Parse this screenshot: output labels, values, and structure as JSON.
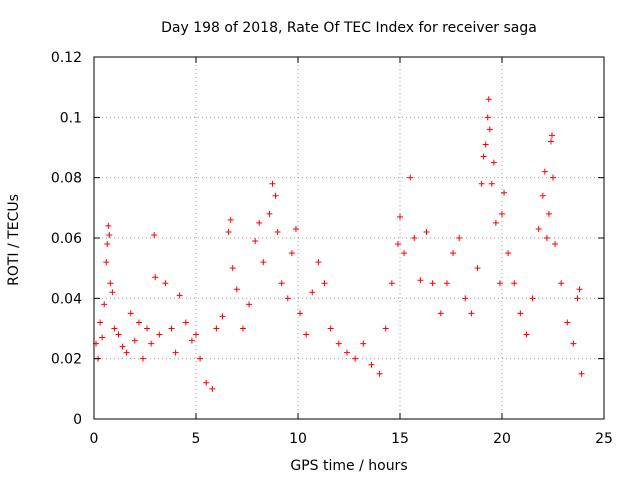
{
  "chart_data": {
    "type": "scatter",
    "title": "Day 198 of 2018, Rate Of TEC Index for receiver saga",
    "xlabel": "GPS time / hours",
    "ylabel": "ROTI / TECUs",
    "xlim": [
      0,
      25
    ],
    "ylim": [
      0,
      0.12
    ],
    "x_ticks": [
      0,
      5,
      10,
      15,
      20,
      25
    ],
    "x_tick_labels": [
      "0",
      "5",
      "10",
      "15",
      "20",
      "25"
    ],
    "y_ticks": [
      0,
      0.02,
      0.04,
      0.06,
      0.08,
      0.1,
      0.12
    ],
    "y_tick_labels": [
      "0",
      "0.02",
      "0.04",
      "0.06",
      "0.08",
      "0.1",
      "0.12"
    ],
    "grid": true,
    "marker": "+",
    "series": [
      {
        "name": "ROTI",
        "color": "#ff0000",
        "points": [
          [
            0.1,
            0.025
          ],
          [
            0.2,
            0.02
          ],
          [
            0.3,
            0.032
          ],
          [
            0.4,
            0.027
          ],
          [
            0.5,
            0.038
          ],
          [
            0.6,
            0.052
          ],
          [
            0.65,
            0.058
          ],
          [
            0.7,
            0.064
          ],
          [
            0.75,
            0.061
          ],
          [
            0.8,
            0.045
          ],
          [
            0.9,
            0.042
          ],
          [
            1.0,
            0.03
          ],
          [
            1.2,
            0.028
          ],
          [
            1.4,
            0.024
          ],
          [
            1.6,
            0.022
          ],
          [
            1.8,
            0.035
          ],
          [
            2.0,
            0.026
          ],
          [
            2.2,
            0.032
          ],
          [
            2.4,
            0.02
          ],
          [
            2.6,
            0.03
          ],
          [
            2.8,
            0.025
          ],
          [
            2.95,
            0.061
          ],
          [
            3.0,
            0.047
          ],
          [
            3.2,
            0.028
          ],
          [
            3.5,
            0.045
          ],
          [
            3.8,
            0.03
          ],
          [
            4.0,
            0.022
          ],
          [
            4.2,
            0.041
          ],
          [
            4.5,
            0.032
          ],
          [
            4.8,
            0.026
          ],
          [
            5.0,
            0.028
          ],
          [
            5.2,
            0.02
          ],
          [
            5.5,
            0.012
          ],
          [
            5.8,
            0.01
          ],
          [
            6.0,
            0.03
          ],
          [
            6.3,
            0.034
          ],
          [
            6.6,
            0.062
          ],
          [
            6.7,
            0.066
          ],
          [
            6.8,
            0.05
          ],
          [
            7.0,
            0.043
          ],
          [
            7.3,
            0.03
          ],
          [
            7.6,
            0.038
          ],
          [
            7.9,
            0.059
          ],
          [
            8.1,
            0.065
          ],
          [
            8.3,
            0.052
          ],
          [
            8.6,
            0.068
          ],
          [
            8.75,
            0.078
          ],
          [
            8.9,
            0.074
          ],
          [
            9.0,
            0.062
          ],
          [
            9.2,
            0.045
          ],
          [
            9.5,
            0.04
          ],
          [
            9.7,
            0.055
          ],
          [
            9.9,
            0.063
          ],
          [
            10.1,
            0.035
          ],
          [
            10.4,
            0.028
          ],
          [
            10.7,
            0.042
          ],
          [
            11.0,
            0.052
          ],
          [
            11.3,
            0.045
          ],
          [
            11.6,
            0.03
          ],
          [
            12.0,
            0.025
          ],
          [
            12.4,
            0.022
          ],
          [
            12.8,
            0.02
          ],
          [
            13.2,
            0.025
          ],
          [
            13.6,
            0.018
          ],
          [
            14.0,
            0.015
          ],
          [
            14.3,
            0.03
          ],
          [
            14.6,
            0.045
          ],
          [
            14.9,
            0.058
          ],
          [
            15.0,
            0.067
          ],
          [
            15.2,
            0.055
          ],
          [
            15.5,
            0.08
          ],
          [
            15.7,
            0.06
          ],
          [
            16.0,
            0.046
          ],
          [
            16.3,
            0.062
          ],
          [
            16.6,
            0.045
          ],
          [
            17.0,
            0.035
          ],
          [
            17.3,
            0.045
          ],
          [
            17.6,
            0.055
          ],
          [
            17.9,
            0.06
          ],
          [
            18.2,
            0.04
          ],
          [
            18.5,
            0.035
          ],
          [
            18.8,
            0.05
          ],
          [
            19.0,
            0.078
          ],
          [
            19.1,
            0.087
          ],
          [
            19.2,
            0.091
          ],
          [
            19.3,
            0.1
          ],
          [
            19.35,
            0.106
          ],
          [
            19.4,
            0.096
          ],
          [
            19.5,
            0.078
          ],
          [
            19.6,
            0.085
          ],
          [
            19.7,
            0.065
          ],
          [
            19.9,
            0.045
          ],
          [
            20.0,
            0.068
          ],
          [
            20.1,
            0.075
          ],
          [
            20.3,
            0.055
          ],
          [
            20.6,
            0.045
          ],
          [
            20.9,
            0.035
          ],
          [
            21.2,
            0.028
          ],
          [
            21.5,
            0.04
          ],
          [
            21.8,
            0.063
          ],
          [
            22.0,
            0.074
          ],
          [
            22.1,
            0.082
          ],
          [
            22.2,
            0.06
          ],
          [
            22.3,
            0.068
          ],
          [
            22.4,
            0.092
          ],
          [
            22.45,
            0.094
          ],
          [
            22.5,
            0.08
          ],
          [
            22.6,
            0.058
          ],
          [
            22.9,
            0.045
          ],
          [
            23.2,
            0.032
          ],
          [
            23.5,
            0.025
          ],
          [
            23.7,
            0.04
          ],
          [
            23.8,
            0.043
          ],
          [
            23.9,
            0.015
          ]
        ]
      }
    ]
  }
}
